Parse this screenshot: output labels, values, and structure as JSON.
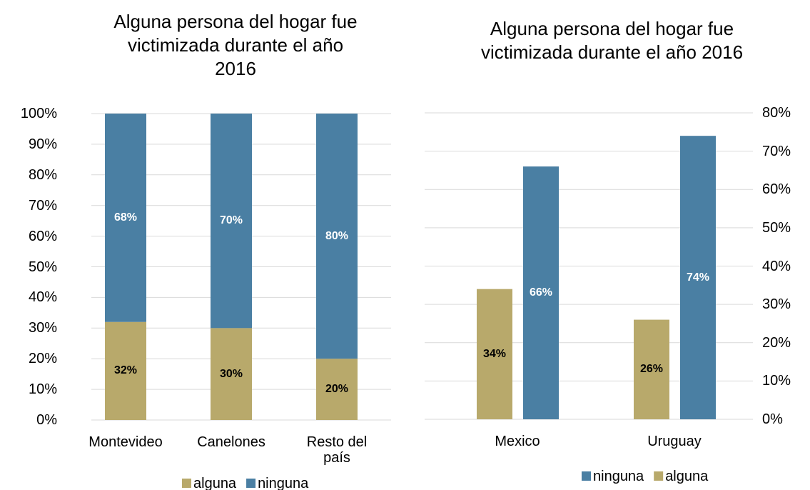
{
  "chart_data": [
    {
      "type": "bar",
      "stacked": true,
      "title": "Alguna persona del hogar fue victimizada durante el año 2016",
      "categories": [
        "Montevideo",
        "Canelones",
        "Resto del país"
      ],
      "series": [
        {
          "name": "alguna",
          "color": "#b8a96b",
          "values": [
            32,
            30,
            20
          ],
          "value_labels": [
            "32%",
            "30%",
            "20%"
          ],
          "label_color": "#000000"
        },
        {
          "name": "ninguna",
          "color": "#4a7fa3",
          "values": [
            68,
            70,
            80
          ],
          "value_labels": [
            "68%",
            "70%",
            "80%"
          ],
          "label_color": "#ffffff"
        }
      ],
      "ylim": [
        0,
        100
      ],
      "yticks": [
        {
          "value": 0,
          "label": "0%"
        },
        {
          "value": 10,
          "label": "10%"
        },
        {
          "value": 20,
          "label": "20%"
        },
        {
          "value": 30,
          "label": "30%"
        },
        {
          "value": 40,
          "label": "40%"
        },
        {
          "value": 50,
          "label": "50%"
        },
        {
          "value": 60,
          "label": "60%"
        },
        {
          "value": 70,
          "label": "70%"
        },
        {
          "value": 80,
          "label": "80%"
        },
        {
          "value": 90,
          "label": "90%"
        },
        {
          "value": 100,
          "label": "100%"
        }
      ],
      "grid": true,
      "y_axis_position": "left",
      "legend": "bottom",
      "legend_reversed": false
    },
    {
      "type": "bar",
      "stacked": false,
      "title": "Alguna persona del hogar fue victimizada durante el año 2016",
      "categories": [
        "Mexico",
        "Uruguay"
      ],
      "series": [
        {
          "name": "alguna",
          "color": "#b8a96b",
          "values": [
            34,
            26
          ],
          "value_labels": [
            "34%",
            "26%"
          ],
          "label_color": "#000000"
        },
        {
          "name": "ninguna",
          "color": "#4a7fa3",
          "values": [
            66,
            74
          ],
          "value_labels": [
            "66%",
            "74%"
          ],
          "label_color": "#ffffff"
        }
      ],
      "ylim": [
        0,
        80
      ],
      "yticks": [
        {
          "value": 0,
          "label": "0%"
        },
        {
          "value": 10,
          "label": "10%"
        },
        {
          "value": 20,
          "label": "20%"
        },
        {
          "value": 30,
          "label": "30%"
        },
        {
          "value": 40,
          "label": "40%"
        },
        {
          "value": 50,
          "label": "50%"
        },
        {
          "value": 60,
          "label": "60%"
        },
        {
          "value": 70,
          "label": "70%"
        },
        {
          "value": 80,
          "label": "80%"
        }
      ],
      "grid": true,
      "y_axis_position": "right",
      "legend": "bottom",
      "legend_reversed": true
    }
  ]
}
